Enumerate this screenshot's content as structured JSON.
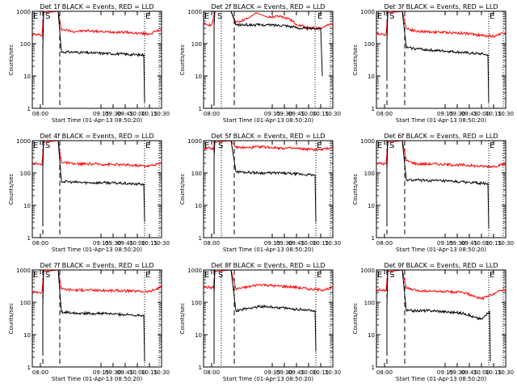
{
  "common": {
    "type": "line",
    "ylabel": "Counts/sec",
    "xlabel": "Start Time (01-Apr-13 08:50:20)",
    "yscale": "log",
    "ylim": [
      1,
      1000
    ],
    "yticks": [
      1,
      10,
      100,
      1000
    ],
    "ytick_labels": [
      "1",
      "10",
      "100",
      "1000"
    ],
    "xlim": [
      "07:50",
      "10:30"
    ],
    "xticks": [
      "08:00",
      "09:15",
      "09:30",
      "09:45",
      "10:00",
      "10:15",
      "10:30"
    ],
    "xtick_labels": [
      "08:00",
      "09:15",
      "09:30",
      "09:45",
      "10:00",
      "10:15",
      "10:30"
    ],
    "series_colors": {
      "events": "#000000",
      "lld": "#ff0000"
    },
    "marker_labels": {
      "eclipse": "E",
      "saa": "S"
    }
  },
  "chart_data": [
    {
      "title": "Det 1f BLACK = Events, RED = LLD",
      "markers": {
        "dashed": [
          "08:03",
          "08:24"
        ],
        "dotted": [
          "10:09",
          "10:27"
        ],
        "E_left": "07:50",
        "S": "08:05",
        "E_right": "10:09"
      },
      "series": [
        {
          "id": "lld",
          "color": "#ff0000",
          "x": [
            "07:50",
            "08:02",
            "08:04",
            "08:22",
            "08:26",
            "08:40",
            "09:00",
            "09:20",
            "09:40",
            "10:00",
            "10:15",
            "10:30"
          ],
          "y": [
            200,
            180,
            900,
            1000,
            280,
            240,
            250,
            230,
            230,
            210,
            200,
            280
          ]
        },
        {
          "id": "events",
          "color": "#000000",
          "x": [
            "08:03",
            "08:03",
            "08:04",
            "08:22",
            "08:26",
            "08:40",
            "09:00",
            "09:20",
            "09:40",
            "10:00",
            "10:08",
            "10:09"
          ],
          "y": [
            1.5,
            60,
            1000,
            1000,
            55,
            55,
            52,
            50,
            48,
            45,
            45,
            1.5
          ]
        }
      ]
    },
    {
      "title": "Det 2f BLACK = Events, RED = LLD",
      "markers": {
        "dashed": [
          "08:03",
          "08:28"
        ],
        "dotted": [
          "08:12",
          "10:08",
          "10:27"
        ],
        "E_left": "07:50",
        "S": "08:06",
        "E_right": "10:10"
      },
      "series": [
        {
          "id": "lld",
          "color": "#ff0000",
          "x": [
            "07:50",
            "08:00",
            "08:04",
            "08:24",
            "08:30",
            "08:45",
            "08:55",
            "09:10",
            "09:25",
            "09:35",
            "09:45",
            "10:00",
            "10:15",
            "10:30"
          ],
          "y": [
            400,
            380,
            1000,
            1000,
            450,
            600,
            900,
            650,
            700,
            600,
            400,
            300,
            300,
            420
          ]
        },
        {
          "id": "events",
          "color": "#000000",
          "x": [
            "08:03",
            "08:03",
            "08:04",
            "08:24",
            "08:30",
            "09:00",
            "09:30",
            "09:50",
            "10:05",
            "10:15",
            "10:17"
          ],
          "y": [
            1.2,
            350,
            1000,
            1000,
            380,
            380,
            370,
            300,
            290,
            300,
            10
          ]
        }
      ]
    },
    {
      "title": "Det 3f BLACK = Events, RED = LLD",
      "markers": {
        "dashed": [
          "08:03",
          "08:25"
        ],
        "dotted": [
          "10:09",
          "10:27"
        ],
        "E_left": "07:50",
        "S": "08:05",
        "E_right": "10:09"
      },
      "series": [
        {
          "id": "lld",
          "color": "#ff0000",
          "x": [
            "07:50",
            "08:02",
            "08:04",
            "08:22",
            "08:27",
            "08:40",
            "09:00",
            "09:20",
            "09:40",
            "10:00",
            "10:15",
            "10:30"
          ],
          "y": [
            210,
            190,
            900,
            1000,
            300,
            240,
            230,
            220,
            210,
            180,
            170,
            230
          ]
        },
        {
          "id": "events",
          "color": "#000000",
          "x": [
            "08:03",
            "08:03",
            "08:04",
            "08:22",
            "08:27",
            "08:40",
            "09:00",
            "09:20",
            "09:40",
            "10:00",
            "10:08",
            "10:09"
          ],
          "y": [
            8,
            120,
            1000,
            1000,
            75,
            70,
            62,
            58,
            52,
            48,
            45,
            1.5
          ]
        }
      ]
    },
    {
      "title": "Det 4f BLACK = Events, RED = LLD",
      "markers": {
        "dashed": [
          "08:03",
          "08:24"
        ],
        "dotted": [
          "10:09",
          "10:27"
        ],
        "E_left": "07:50",
        "S": "08:05",
        "E_right": "10:09"
      },
      "series": [
        {
          "id": "lld",
          "color": "#ff0000",
          "x": [
            "07:50",
            "08:02",
            "08:04",
            "08:22",
            "08:26",
            "08:40",
            "09:00",
            "09:20",
            "09:40",
            "10:00",
            "10:15",
            "10:30"
          ],
          "y": [
            200,
            180,
            900,
            1000,
            220,
            190,
            190,
            185,
            180,
            170,
            165,
            200
          ]
        },
        {
          "id": "events",
          "color": "#000000",
          "x": [
            "08:03",
            "08:03",
            "08:04",
            "08:22",
            "08:26",
            "08:40",
            "09:00",
            "09:20",
            "09:40",
            "10:00",
            "10:08",
            "10:09"
          ],
          "y": [
            3,
            150,
            1000,
            1000,
            55,
            52,
            50,
            50,
            48,
            45,
            45,
            3
          ]
        }
      ]
    },
    {
      "title": "Det 5f BLACK = Events, RED = LLD",
      "markers": {
        "dashed": [
          "08:03",
          "08:28"
        ],
        "dotted": [
          "08:12",
          "10:09",
          "10:27"
        ],
        "E_left": "07:50",
        "S": "08:07",
        "E_right": "10:09"
      },
      "series": [
        {
          "id": "lld",
          "color": "#ff0000",
          "x": [
            "07:50",
            "08:02",
            "08:04",
            "08:24",
            "08:30",
            "08:45",
            "09:00",
            "09:20",
            "09:40",
            "10:00",
            "10:15",
            "10:30"
          ],
          "y": [
            600,
            550,
            900,
            1000,
            620,
            600,
            650,
            600,
            580,
            540,
            520,
            620
          ]
        },
        {
          "id": "events",
          "color": "#000000",
          "x": [
            "08:03",
            "08:03",
            "08:04",
            "08:24",
            "08:30",
            "08:45",
            "09:00",
            "09:20",
            "09:40",
            "10:00",
            "10:08",
            "10:09"
          ],
          "y": [
            1.5,
            300,
            1000,
            1000,
            110,
            105,
            100,
            100,
            95,
            88,
            85,
            3
          ]
        }
      ]
    },
    {
      "title": "Det 6f BLACK = Events, RED = LLD",
      "markers": {
        "dashed": [
          "08:03",
          "08:25"
        ],
        "dotted": [
          "10:09",
          "10:27"
        ],
        "E_left": "07:50",
        "S": "08:05",
        "E_right": "10:09"
      },
      "series": [
        {
          "id": "lld",
          "color": "#ff0000",
          "x": [
            "07:50",
            "08:02",
            "08:04",
            "08:22",
            "08:27",
            "08:40",
            "09:00",
            "09:20",
            "09:40",
            "10:00",
            "10:15",
            "10:30"
          ],
          "y": [
            200,
            190,
            900,
            1000,
            240,
            190,
            190,
            180,
            175,
            160,
            160,
            190
          ]
        },
        {
          "id": "events",
          "color": "#000000",
          "x": [
            "08:03",
            "08:03",
            "08:04",
            "08:22",
            "08:27",
            "08:40",
            "09:00",
            "09:20",
            "09:40",
            "10:00",
            "10:08",
            "10:09"
          ],
          "y": [
            3,
            130,
            1000,
            1000,
            60,
            60,
            58,
            55,
            52,
            48,
            48,
            2
          ]
        }
      ]
    },
    {
      "title": "Det 7f BLACK = Events, RED = LLD",
      "markers": {
        "dashed": [
          "08:03",
          "08:24"
        ],
        "dotted": [
          "10:09",
          "10:27"
        ],
        "E_left": "07:50",
        "S": "08:05",
        "E_right": "10:09"
      },
      "series": [
        {
          "id": "lld",
          "color": "#ff0000",
          "x": [
            "07:50",
            "08:02",
            "08:04",
            "08:22",
            "08:26",
            "08:40",
            "09:00",
            "09:20",
            "09:40",
            "10:00",
            "10:15",
            "10:30"
          ],
          "y": [
            220,
            200,
            900,
            1000,
            260,
            240,
            240,
            230,
            230,
            220,
            215,
            300
          ]
        },
        {
          "id": "events",
          "color": "#000000",
          "x": [
            "08:03",
            "08:03",
            "08:04",
            "08:22",
            "08:26",
            "08:40",
            "09:00",
            "09:20",
            "09:40",
            "10:00",
            "10:08",
            "10:09"
          ],
          "y": [
            3,
            80,
            1000,
            1000,
            50,
            48,
            45,
            45,
            42,
            40,
            40,
            1.5
          ]
        }
      ]
    },
    {
      "title": "Det 8f BLACK = Events, RED = LLD",
      "markers": {
        "dashed": [
          "08:03",
          "08:28"
        ],
        "dotted": [
          "08:12",
          "10:09",
          "10:27"
        ],
        "E_left": "07:50",
        "S": "08:07",
        "E_right": "10:09"
      },
      "series": [
        {
          "id": "lld",
          "color": "#ff0000",
          "x": [
            "07:50",
            "08:02",
            "08:04",
            "08:24",
            "08:30",
            "08:45",
            "09:00",
            "09:20",
            "09:40",
            "10:00",
            "10:15",
            "10:30"
          ],
          "y": [
            300,
            280,
            900,
            1000,
            260,
            300,
            360,
            320,
            300,
            260,
            240,
            280
          ]
        },
        {
          "id": "events",
          "color": "#000000",
          "x": [
            "08:03",
            "08:03",
            "08:04",
            "08:24",
            "08:30",
            "08:45",
            "09:00",
            "09:20",
            "09:40",
            "10:00",
            "10:08",
            "10:09"
          ],
          "y": [
            1.5,
            200,
            1000,
            1000,
            55,
            65,
            75,
            70,
            62,
            58,
            55,
            3
          ]
        }
      ]
    },
    {
      "title": "Det 9f BLACK = Events, RED = LLD",
      "markers": {
        "dashed": [
          "08:03",
          "08:25"
        ],
        "dotted": [
          "10:09",
          "10:27"
        ],
        "E_left": "07:50",
        "S": "08:05",
        "E_right": "10:09"
      },
      "series": [
        {
          "id": "lld",
          "color": "#ff0000",
          "x": [
            "07:50",
            "08:02",
            "08:04",
            "08:22",
            "08:27",
            "08:40",
            "09:00",
            "09:20",
            "09:40",
            "09:50",
            "10:00",
            "10:10",
            "10:15",
            "10:30"
          ],
          "y": [
            250,
            230,
            900,
            1000,
            270,
            230,
            220,
            210,
            200,
            150,
            130,
            160,
            190,
            260
          ]
        },
        {
          "id": "events",
          "color": "#000000",
          "x": [
            "08:03",
            "08:03",
            "08:04",
            "08:22",
            "08:27",
            "08:40",
            "09:00",
            "09:20",
            "09:40",
            "09:50",
            "10:00",
            "10:08",
            "10:10",
            "10:11"
          ],
          "y": [
            3,
            80,
            1000,
            1000,
            55,
            55,
            55,
            50,
            45,
            35,
            30,
            45,
            55,
            1.5
          ]
        }
      ]
    }
  ]
}
